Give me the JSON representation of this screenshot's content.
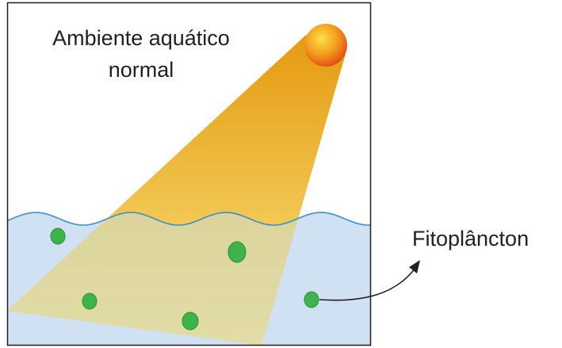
{
  "title_lines": [
    "Ambiente aquático",
    "normal"
  ],
  "label": "Fitoplâncton"
}
